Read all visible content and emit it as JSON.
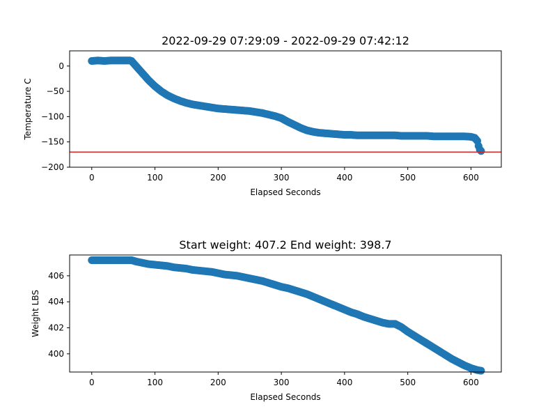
{
  "chart_data": [
    {
      "type": "scatter",
      "title": "2022-09-29 07:29:09 - 2022-09-29 07:42:12",
      "xlabel": "Elapsed Seconds",
      "ylabel": "Temperature C",
      "xlim": [
        -35,
        648
      ],
      "ylim": [
        -200,
        30
      ],
      "xticks": [
        0,
        100,
        200,
        300,
        400,
        500,
        600
      ],
      "yticks": [
        0,
        -50,
        -100,
        -150,
        -200
      ],
      "xtick_labels": [
        "0",
        "100",
        "200",
        "300",
        "400",
        "500",
        "600"
      ],
      "ytick_labels": [
        "0",
        "−50",
        "−100",
        "−150",
        "−200"
      ],
      "marker_color": "#1f77b4",
      "hline": {
        "y": -170,
        "color": "#d62728"
      },
      "grid": false,
      "legend": "none",
      "series": [
        {
          "x": [
            0,
            10,
            20,
            30,
            40,
            50,
            60,
            63,
            70,
            80,
            90,
            100,
            110,
            120,
            130,
            140,
            150,
            160,
            170,
            180,
            190,
            200,
            210,
            220,
            230,
            240,
            250,
            260,
            270,
            280,
            290,
            300,
            310,
            320,
            330,
            340,
            350,
            360,
            370,
            380,
            390,
            400,
            410,
            420,
            430,
            440,
            450,
            460,
            470,
            480,
            490,
            500,
            510,
            520,
            530,
            540,
            550,
            560,
            570,
            580,
            590,
            600,
            606,
            610,
            612,
            614,
            616
          ],
          "y": [
            10,
            11,
            10,
            11,
            11,
            11,
            11,
            10,
            0,
            -14,
            -28,
            -40,
            -50,
            -58,
            -64,
            -69,
            -73,
            -76,
            -78,
            -80,
            -82,
            -84,
            -85,
            -86,
            -87,
            -88,
            -89,
            -91,
            -93,
            -96,
            -99,
            -103,
            -110,
            -116,
            -122,
            -127,
            -130,
            -132,
            -133,
            -134,
            -135,
            -136,
            -136,
            -137,
            -137,
            -137,
            -137,
            -137,
            -137,
            -137,
            -138,
            -138,
            -138,
            -138,
            -138,
            -139,
            -139,
            -139,
            -139,
            -139,
            -139,
            -140,
            -142,
            -148,
            -158,
            -165,
            -168
          ]
        }
      ]
    },
    {
      "type": "scatter",
      "title": "Start weight: 407.2 End weight: 398.7",
      "xlabel": "Elapsed Seconds",
      "ylabel": "Weight LBS",
      "xlim": [
        -35,
        648
      ],
      "ylim": [
        398.6,
        407.6
      ],
      "xticks": [
        0,
        100,
        200,
        300,
        400,
        500,
        600
      ],
      "yticks": [
        400,
        402,
        404,
        406
      ],
      "xtick_labels": [
        "0",
        "100",
        "200",
        "300",
        "400",
        "500",
        "600"
      ],
      "ytick_labels": [
        "400",
        "402",
        "404",
        "406"
      ],
      "marker_color": "#1f77b4",
      "grid": false,
      "legend": "none",
      "series": [
        {
          "x": [
            0,
            10,
            20,
            30,
            40,
            50,
            60,
            63,
            70,
            80,
            90,
            100,
            110,
            120,
            130,
            140,
            150,
            160,
            170,
            180,
            190,
            200,
            210,
            220,
            230,
            240,
            250,
            260,
            270,
            280,
            290,
            300,
            310,
            320,
            330,
            340,
            350,
            360,
            370,
            380,
            390,
            400,
            410,
            420,
            430,
            440,
            450,
            460,
            470,
            480,
            490,
            500,
            510,
            520,
            530,
            540,
            550,
            560,
            570,
            580,
            590,
            600,
            610,
            616
          ],
          "y": [
            407.2,
            407.2,
            407.2,
            407.2,
            407.2,
            407.2,
            407.2,
            407.2,
            407.1,
            407.0,
            406.9,
            406.85,
            406.8,
            406.75,
            406.65,
            406.6,
            406.55,
            406.45,
            406.4,
            406.35,
            406.3,
            406.2,
            406.1,
            406.05,
            406.0,
            405.9,
            405.8,
            405.7,
            405.6,
            405.45,
            405.3,
            405.15,
            405.05,
            404.9,
            404.75,
            404.6,
            404.4,
            404.2,
            404.0,
            403.8,
            403.6,
            403.4,
            403.2,
            403.05,
            402.85,
            402.7,
            402.55,
            402.4,
            402.3,
            402.3,
            402.05,
            401.7,
            401.4,
            401.1,
            400.8,
            400.5,
            400.2,
            399.9,
            399.6,
            399.35,
            399.1,
            398.9,
            398.75,
            398.7
          ]
        }
      ]
    }
  ]
}
